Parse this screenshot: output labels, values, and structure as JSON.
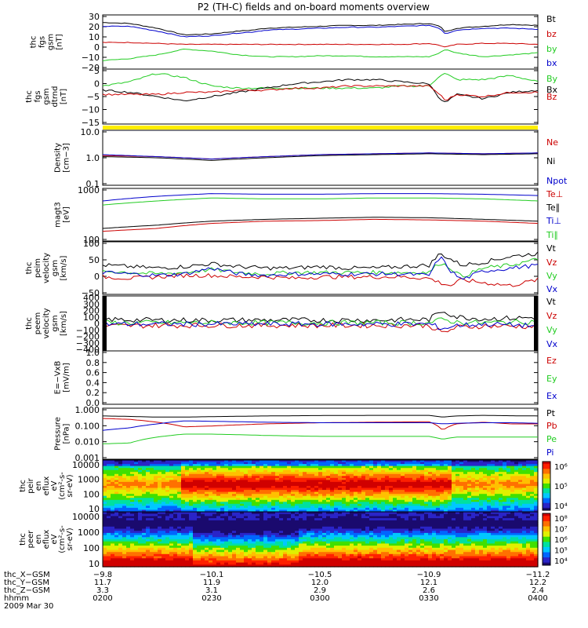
{
  "title": "P2 (TH-C) fields and on-board moments overview",
  "colors": {
    "black": "#000000",
    "red": "#cc0000",
    "green": "#22cc22",
    "blue": "#0000cc",
    "yellow": "#ffee00"
  },
  "chart_data": [
    {
      "type": "line",
      "panel": "fgs_gsm",
      "ylabel": [
        "thc",
        "fgs",
        "gsm",
        "[nT]"
      ],
      "yticks": [
        "30",
        "20",
        "10",
        "0",
        "−10",
        "−20"
      ],
      "ylim": [
        -25,
        32
      ],
      "legend": [
        {
          "label": "Bt",
          "color": "#000000"
        },
        {
          "label": "bz",
          "color": "#cc0000"
        },
        {
          "label": "by",
          "color": "#22cc22"
        },
        {
          "label": "bx",
          "color": "#0000cc"
        }
      ],
      "x": [
        0,
        10,
        20,
        30,
        40,
        50,
        55,
        60,
        70,
        80,
        90,
        100,
        110,
        120,
        124,
        126,
        130,
        140,
        150,
        160
      ],
      "series": [
        {
          "label": "Bt",
          "color": "#000000",
          "values": [
            24,
            23,
            18,
            11,
            12,
            15,
            16,
            18,
            19,
            20,
            21,
            21,
            22,
            23,
            20,
            14,
            18,
            20,
            22,
            21
          ]
        },
        {
          "label": "bz",
          "color": "#cc0000",
          "values": [
            3,
            3,
            2,
            1,
            1,
            1,
            1,
            1,
            1,
            1,
            1,
            1,
            1,
            2,
            0,
            -2,
            1,
            2,
            2,
            1
          ]
        },
        {
          "label": "by",
          "color": "#22cc22",
          "values": [
            -16,
            -14,
            -10,
            -4,
            -6,
            -10,
            -11,
            -12,
            -12,
            -11,
            -11,
            -12,
            -12,
            -12,
            -8,
            -4,
            -8,
            -12,
            -10,
            -8
          ]
        },
        {
          "label": "bx",
          "color": "#0000cc",
          "values": [
            20,
            20,
            15,
            9,
            10,
            13,
            14,
            16,
            17,
            18,
            19,
            19,
            20,
            21,
            18,
            12,
            16,
            18,
            18,
            17
          ]
        }
      ]
    },
    {
      "type": "line",
      "panel": "fgs_gsm_dtrnd",
      "ylabel": [
        "thc",
        "fgs",
        "gsm",
        "dtrnd",
        "[nT]"
      ],
      "yticks": [
        "5",
        "0",
        "−5",
        "−10",
        "−15"
      ],
      "ylim": [
        -18,
        8
      ],
      "legend": [
        {
          "label": "By",
          "color": "#22cc22"
        },
        {
          "label": "Bx",
          "color": "#000000"
        },
        {
          "label": "Bz",
          "color": "#cc0000"
        }
      ],
      "x": [
        0,
        10,
        20,
        30,
        40,
        50,
        60,
        70,
        80,
        90,
        100,
        110,
        120,
        124,
        126,
        130,
        140,
        150,
        160
      ],
      "series": [
        {
          "label": "By",
          "color": "#22cc22",
          "values": [
            0,
            2,
            6,
            4,
            0,
            -1,
            -1,
            -1,
            -1,
            -1,
            -1,
            0,
            0,
            5,
            6,
            3,
            3,
            5,
            2
          ]
        },
        {
          "label": "Bx",
          "color": "#000000",
          "values": [
            -2,
            -3,
            -5,
            -7,
            -5,
            -3,
            -1,
            1,
            2,
            3,
            3,
            2,
            1,
            -6,
            -8,
            -4,
            -6,
            -3,
            -2
          ]
        },
        {
          "label": "Bz",
          "color": "#cc0000",
          "values": [
            -4,
            -4,
            -4,
            -3,
            -3,
            -2,
            -2,
            -1,
            -1,
            0,
            0,
            0,
            0,
            -4,
            -7,
            -4,
            -5,
            -3,
            -3
          ]
        }
      ]
    },
    {
      "type": "line",
      "panel": "density",
      "ylabel": [
        "Density",
        "[cm−3]"
      ],
      "yticks": [
        "10.0",
        "1.0",
        "0.1"
      ],
      "ylim": [
        0.1,
        10
      ],
      "scale": "log",
      "legend": [
        {
          "label": "Ne",
          "color": "#cc0000"
        },
        {
          "label": "Ni",
          "color": "#000000"
        },
        {
          "label": "Npot",
          "color": "#0000cc"
        }
      ],
      "x": [
        0,
        20,
        40,
        60,
        80,
        100,
        120,
        140,
        160
      ],
      "series": [
        {
          "label": "Ne",
          "color": "#cc0000",
          "values": [
            1.2,
            1.1,
            0.9,
            1.1,
            1.3,
            1.4,
            1.5,
            1.4,
            1.5
          ]
        },
        {
          "label": "Ni",
          "color": "#000000",
          "values": [
            1.1,
            1.0,
            0.8,
            1.0,
            1.2,
            1.3,
            1.4,
            1.3,
            1.4
          ]
        },
        {
          "label": "Npot",
          "color": "#0000cc",
          "values": [
            1.3,
            1.1,
            0.9,
            1.1,
            1.3,
            1.4,
            1.5,
            1.4,
            1.5
          ]
        }
      ]
    },
    {
      "type": "line",
      "panel": "temperature",
      "ylabel": [
        "magt3",
        "[eV]"
      ],
      "yticks": [
        "1000",
        "100"
      ],
      "ylim": [
        30,
        3000
      ],
      "scale": "log",
      "legend": [
        {
          "label": "Te⊥",
          "color": "#cc0000"
        },
        {
          "label": "Te∥",
          "color": "#000000"
        },
        {
          "label": "Ti⊥",
          "color": "#0000cc"
        },
        {
          "label": "Ti∥",
          "color": "#22cc22"
        }
      ],
      "x": [
        0,
        20,
        40,
        60,
        80,
        100,
        120,
        140,
        160
      ],
      "series": [
        {
          "label": "Te⊥",
          "color": "#cc0000",
          "values": [
            70,
            90,
            140,
            170,
            180,
            200,
            190,
            170,
            140
          ]
        },
        {
          "label": "Te∥",
          "color": "#000000",
          "values": [
            90,
            120,
            170,
            200,
            220,
            240,
            230,
            200,
            170
          ]
        },
        {
          "label": "Ti⊥",
          "color": "#0000cc",
          "values": [
            1000,
            1500,
            1900,
            1800,
            1800,
            1900,
            1900,
            1800,
            1600
          ]
        },
        {
          "label": "Ti∥",
          "color": "#22cc22",
          "values": [
            700,
            1000,
            1300,
            1200,
            1200,
            1300,
            1300,
            1200,
            1000
          ]
        }
      ]
    },
    {
      "type": "line",
      "panel": "peim_velocity",
      "ylabel": [
        "thc",
        "peim",
        "velocity",
        "gsm",
        "[km/s]"
      ],
      "yticks": [
        "100",
        "50",
        "0",
        "−50"
      ],
      "ylim": [
        -70,
        110
      ],
      "legend": [
        {
          "label": "Vt",
          "color": "#000000"
        },
        {
          "label": "Vz",
          "color": "#cc0000"
        },
        {
          "label": "Vy",
          "color": "#22cc22"
        },
        {
          "label": "Vx",
          "color": "#0000cc"
        }
      ],
      "x": [
        0,
        10,
        20,
        30,
        40,
        50,
        60,
        70,
        80,
        90,
        100,
        110,
        120,
        124,
        128,
        132,
        140,
        150,
        160
      ],
      "series": [
        {
          "label": "Vt",
          "color": "#000000",
          "values": [
            30,
            25,
            20,
            25,
            35,
            25,
            20,
            20,
            25,
            20,
            20,
            25,
            30,
            70,
            50,
            30,
            40,
            60,
            70
          ]
        },
        {
          "label": "Vz",
          "color": "#cc0000",
          "values": [
            -10,
            -15,
            -10,
            -5,
            -5,
            -10,
            -10,
            -15,
            -10,
            -10,
            -10,
            -10,
            -15,
            -30,
            -40,
            -20,
            -30,
            -40,
            -20
          ]
        },
        {
          "label": "Vy",
          "color": "#22cc22",
          "values": [
            10,
            5,
            0,
            5,
            15,
            5,
            0,
            5,
            5,
            5,
            5,
            5,
            5,
            40,
            20,
            -10,
            20,
            30,
            50
          ]
        },
        {
          "label": "Vx",
          "color": "#0000cc",
          "values": [
            5,
            0,
            -5,
            0,
            20,
            0,
            -5,
            0,
            0,
            0,
            0,
            0,
            -5,
            60,
            10,
            -20,
            10,
            20,
            30
          ]
        }
      ]
    },
    {
      "type": "line",
      "panel": "peem_velocity",
      "ylabel": [
        "thc",
        "peem",
        "velocity",
        "gsm",
        "[km/s]"
      ],
      "yticks": [
        "400",
        "300",
        "200",
        "100",
        "0",
        "−100",
        "−200",
        "−300",
        "−400"
      ],
      "ylim": [
        -420,
        420
      ],
      "legend": [
        {
          "label": "Vt",
          "color": "#000000"
        },
        {
          "label": "Vz",
          "color": "#cc0000"
        },
        {
          "label": "Vy",
          "color": "#22cc22"
        },
        {
          "label": "Vx",
          "color": "#0000cc"
        }
      ],
      "x": [
        0,
        20,
        40,
        60,
        80,
        100,
        120,
        125,
        130,
        140,
        150,
        160
      ],
      "series": [
        {
          "label": "Vt",
          "color": "#000000",
          "values": [
            60,
            50,
            50,
            50,
            50,
            50,
            60,
            200,
            100,
            70,
            80,
            90
          ]
        },
        {
          "label": "Vz",
          "color": "#cc0000",
          "values": [
            -40,
            -30,
            -30,
            -30,
            -30,
            -30,
            -30,
            -150,
            -60,
            -40,
            -40,
            -50
          ]
        },
        {
          "label": "Vy",
          "color": "#22cc22",
          "values": [
            10,
            10,
            10,
            10,
            10,
            10,
            10,
            60,
            20,
            10,
            20,
            30
          ]
        },
        {
          "label": "Vx",
          "color": "#0000cc",
          "values": [
            -10,
            -10,
            -10,
            -10,
            -10,
            -10,
            -10,
            -80,
            -30,
            -10,
            -20,
            -40
          ]
        }
      ]
    },
    {
      "type": "line",
      "panel": "e_vxb",
      "ylabel": [
        "E=−VxB",
        "[mV/m]"
      ],
      "yticks": [
        "1.0",
        "0.8",
        "0.6",
        "0.4",
        "0.2",
        "0.0"
      ],
      "ylim": [
        0,
        1
      ],
      "legend": [
        {
          "label": "Ez",
          "color": "#cc0000"
        },
        {
          "label": "Ey",
          "color": "#22cc22"
        },
        {
          "label": "Ex",
          "color": "#0000cc"
        }
      ],
      "series": []
    },
    {
      "type": "line",
      "panel": "pressure",
      "ylabel": [
        "Pressure",
        "[nPa]"
      ],
      "yticks": [
        "1.000",
        "0.100",
        "0.010",
        "0.001"
      ],
      "ylim": [
        0.001,
        1
      ],
      "scale": "log",
      "legend": [
        {
          "label": "Pt",
          "color": "#000000"
        },
        {
          "label": "Pb",
          "color": "#cc0000"
        },
        {
          "label": "Pe",
          "color": "#22cc22"
        },
        {
          "label": "Pi",
          "color": "#0000cc"
        }
      ],
      "x": [
        0,
        10,
        20,
        30,
        40,
        60,
        80,
        100,
        120,
        125,
        130,
        140,
        150,
        160
      ],
      "series": [
        {
          "label": "Pt",
          "color": "#000000",
          "values": [
            0.35,
            0.33,
            0.3,
            0.3,
            0.32,
            0.35,
            0.37,
            0.38,
            0.38,
            0.3,
            0.35,
            0.38,
            0.36,
            0.35
          ]
        },
        {
          "label": "Pb",
          "color": "#cc0000",
          "values": [
            0.25,
            0.22,
            0.15,
            0.08,
            0.09,
            0.12,
            0.14,
            0.15,
            0.16,
            0.05,
            0.12,
            0.15,
            0.12,
            0.12
          ]
        },
        {
          "label": "Pe",
          "color": "#22cc22",
          "values": [
            0.008,
            0.009,
            0.02,
            0.03,
            0.03,
            0.025,
            0.022,
            0.022,
            0.022,
            0.015,
            0.02,
            0.02,
            0.02,
            0.02
          ]
        },
        {
          "label": "Pi",
          "color": "#0000cc",
          "values": [
            0.05,
            0.07,
            0.12,
            0.18,
            0.17,
            0.15,
            0.14,
            0.14,
            0.14,
            0.12,
            0.13,
            0.14,
            0.14,
            0.13
          ]
        }
      ]
    },
    {
      "type": "heatmap",
      "panel": "peir_en_eflux",
      "ylabel": [
        "thc",
        "peir",
        "en",
        "eflux",
        "eV",
        "(cm²-s-",
        "sr-eV)"
      ],
      "yticks": [
        "10000",
        "1000",
        "100",
        "10"
      ],
      "colorbar_labels": [
        "10⁶",
        "10⁵",
        "10⁴"
      ]
    },
    {
      "type": "heatmap",
      "panel": "peer_en_eflux",
      "ylabel": [
        "thc",
        "peer",
        "en",
        "eflux",
        "eV",
        "(cm²-s-",
        "sr-eV)"
      ],
      "yticks": [
        "10000",
        "1000",
        "100",
        "10"
      ],
      "colorbar_labels": [
        "10⁸",
        "10⁷",
        "10⁶",
        "10⁵",
        "10⁴"
      ]
    }
  ],
  "xaxis": {
    "row_labels": [
      "thc_X−GSM",
      "thc_Y−GSM",
      "thc_Z−GSM",
      "hhmm",
      "2009 Mar 30"
    ],
    "columns": [
      {
        "values": [
          "−9.8",
          "11.7",
          "3.3",
          "0200"
        ]
      },
      {
        "values": [
          "−10.1",
          "11.9",
          "3.1",
          "0230"
        ]
      },
      {
        "values": [
          "−10.5",
          "12.0",
          "2.9",
          "0300"
        ]
      },
      {
        "values": [
          "−10.9",
          "12.1",
          "2.6",
          "0330"
        ]
      },
      {
        "values": [
          "−11.2",
          "12.2",
          "2.4",
          "0400"
        ]
      }
    ]
  }
}
